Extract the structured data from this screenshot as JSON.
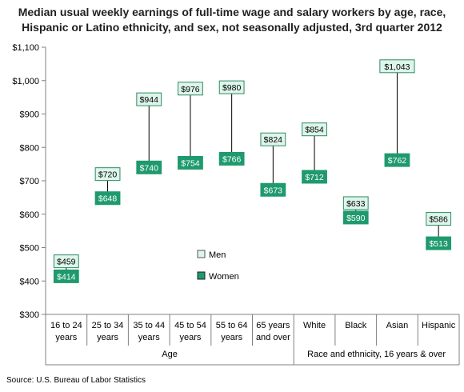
{
  "title": {
    "line1": "Median usual weekly earnings of full-time wage and salary workers by age, race,",
    "line2": "Hispanic or Latino ethnicity, and sex, not seasonally adjusted, 3rd quarter 2012"
  },
  "source": "Source: U.S. Bureau of Labor Statistics",
  "colors": {
    "men_fill": "#ddf5ea",
    "men_border": "#2e8b63",
    "women_fill": "#1f9a6e",
    "women_border": "#1f9a6e",
    "connector": "#000000"
  },
  "chart_data": {
    "type": "dot-range",
    "ylim": [
      300,
      1100
    ],
    "yticks": [
      "$300",
      "$400",
      "$500",
      "$600",
      "$700",
      "$800",
      "$900",
      "$1,000",
      "$1,100"
    ],
    "ytick_values": [
      300,
      400,
      500,
      600,
      700,
      800,
      900,
      1000,
      1100
    ],
    "categories": [
      [
        "16 to 24",
        "years"
      ],
      [
        "25 to 34",
        "years"
      ],
      [
        "35 to 44",
        "years"
      ],
      [
        "45 to 54",
        "years"
      ],
      [
        "55 to 64",
        "years"
      ],
      [
        "65 years",
        "and over"
      ],
      [
        "White"
      ],
      [
        "Black"
      ],
      [
        "Asian"
      ],
      [
        "Hispanic"
      ]
    ],
    "groups": [
      {
        "label": "Age",
        "count": 6
      },
      {
        "label": "Race and ethnicity, 16 years & over",
        "count": 4
      }
    ],
    "series": [
      {
        "name": "Men",
        "values": [
          459,
          720,
          944,
          976,
          980,
          824,
          854,
          633,
          1043,
          586
        ],
        "labels": [
          "$459",
          "$720",
          "$944",
          "$976",
          "$980",
          "$824",
          "$854",
          "$633",
          "$1,043",
          "$586"
        ]
      },
      {
        "name": "Women",
        "values": [
          414,
          648,
          740,
          754,
          766,
          673,
          712,
          590,
          762,
          513
        ],
        "labels": [
          "$414",
          "$648",
          "$740",
          "$754",
          "$766",
          "$673",
          "$712",
          "$590",
          "$762",
          "$513"
        ]
      }
    ],
    "legend_position": "center-left"
  }
}
